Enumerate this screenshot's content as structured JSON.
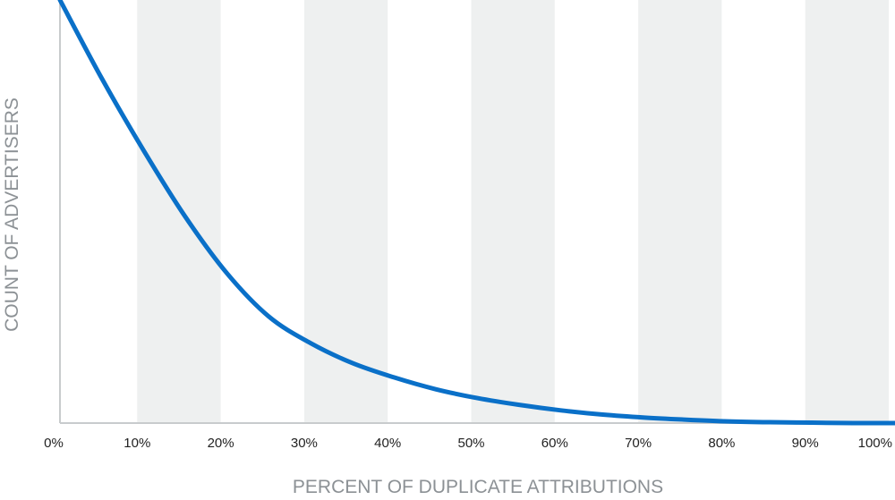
{
  "chart_data": {
    "type": "line",
    "title": "",
    "xlabel": "PERCENT OF DUPLICATE ATTRIBUTIONS",
    "ylabel": "COUNT OF ADVERTISERS",
    "xlim": [
      0,
      100
    ],
    "x_tick_labels": [
      "0%",
      "10%",
      "20%",
      "30%",
      "40%",
      "50%",
      "60%",
      "70%",
      "80%",
      "90%",
      "100%"
    ],
    "y_tick_labels": [],
    "grid": "alternating vertical bands",
    "legend": "none",
    "colors": {
      "line": "#0a70c8",
      "band": "#eef0f0",
      "axis": "#c8cbcd"
    },
    "series": [
      {
        "x": [
          0,
          5,
          10,
          15,
          20,
          25,
          30,
          35,
          40,
          45,
          50,
          55,
          60,
          65,
          70,
          75,
          80,
          85,
          90,
          95,
          100
        ],
        "y": [
          100,
          81.5,
          64.5,
          48.8,
          35.4,
          25.2,
          18.9,
          14.2,
          10.8,
          8.0,
          5.9,
          4.3,
          3.0,
          2.0,
          1.3,
          0.8,
          0.4,
          0.2,
          0.1,
          0.0,
          0.0
        ]
      }
    ]
  }
}
